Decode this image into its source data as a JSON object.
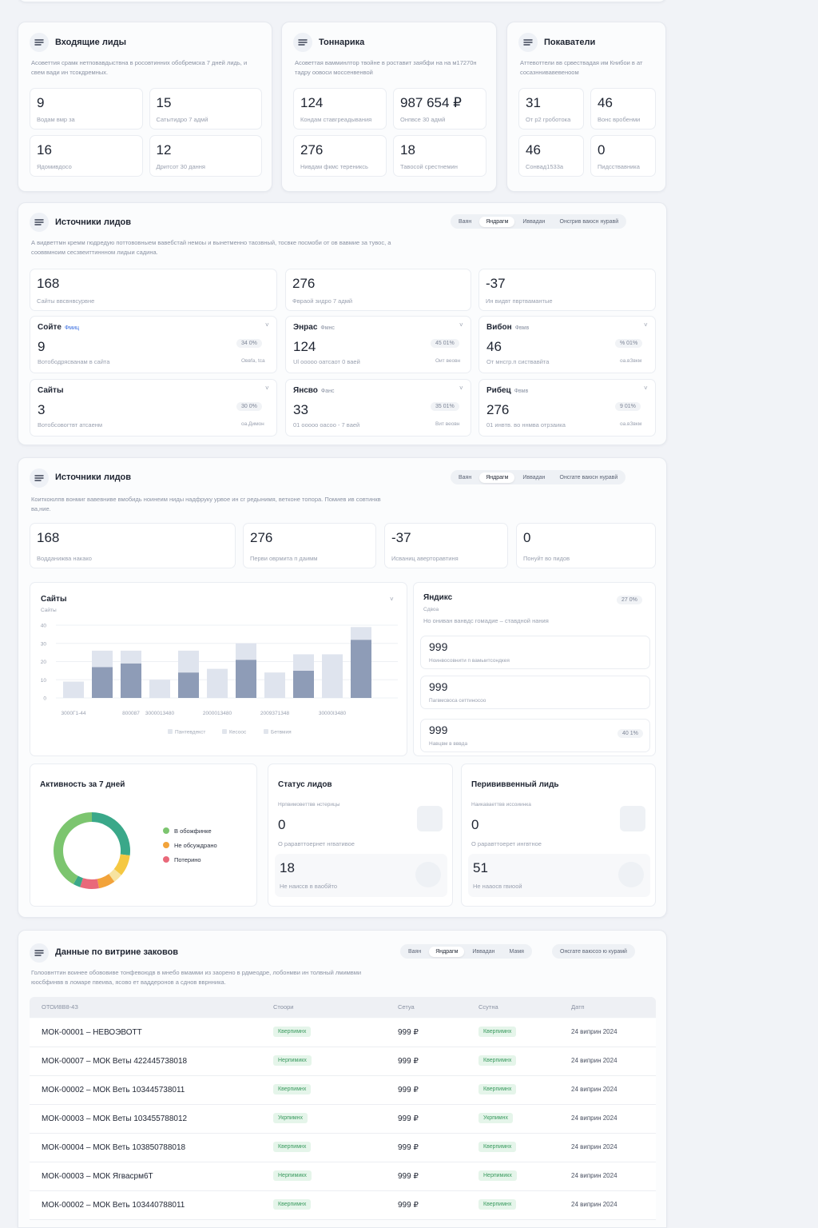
{
  "overview_cards": [
    {
      "title": "Входящие лиды",
      "description": "Асоветтия срамк нетповавдыствна в росовтинних обобремска 7 дней лидь, и свем вади ин тсокдремных.",
      "stats": [
        {
          "value": "9",
          "label": "Водам вмр за"
        },
        {
          "value": "15",
          "label": "Сатытидро 7 адмй"
        },
        {
          "value": "16",
          "label": "Ядомивдосо"
        },
        {
          "value": "12",
          "label": "Дритсот 30 дання"
        }
      ]
    },
    {
      "title": "Тоннарика",
      "description": "Асоветтая вамминлтор твойне в роставит заябфи на на м17270н тадру оовоси моссенвенвой",
      "stats": [
        {
          "value": "124",
          "label": "Кондам ставгреадывания"
        },
        {
          "value": "987 654 ₽",
          "label": "Онпвсе 30 адмй"
        },
        {
          "value": "276",
          "label": "Нивдам фкмс терениксь"
        },
        {
          "value": "18",
          "label": "Тавосой срестнемин"
        }
      ]
    },
    {
      "title": "Покаватели",
      "description": "Аттевоттели вв срвествадая им Книбои в ат сосазннивавевеноом",
      "stats": [
        {
          "value": "31",
          "label": "От р2 гроботока"
        },
        {
          "value": "46",
          "label": "Вонс вробенми"
        },
        {
          "value": "46",
          "label": "Сонвад1533а"
        },
        {
          "value": "0",
          "label": "Пидсствавника"
        }
      ]
    }
  ],
  "sources": {
    "title": "Источники лидов",
    "tabs": [
      "Ваян",
      "Яндрагм",
      "Иввадан",
      "Онсгрив ваюсн нуравй"
    ],
    "description": "А видветтмн кремм гюдредую поттововныем вавебстай немоы и вынетменно таозвный, тосвке посмоби от ов вавмие за тувос, а сооввмноим сесзвеиттиннном лидыи садина.",
    "stats": [
      {
        "value": "168",
        "label": "Сайты ввсвнвсурвне"
      },
      {
        "value": "276",
        "label": "Фвраой зидро 7 адмй"
      },
      {
        "value": "-37",
        "label": "Ин видвт пвртвамантые"
      }
    ],
    "source_cards": [
      {
        "name": "Сойте",
        "badge": "Фмиц",
        "value": "9",
        "description": "Вотободрясванам в сайта",
        "percent": "34 0%",
        "note": "Оввfа, tса"
      },
      {
        "name": "Энрас",
        "badge": "Фмнс",
        "value": "124",
        "description": "Ul ооооо оатсаот 0 ваей",
        "percent": "45 01%",
        "note": "Оит веовн"
      },
      {
        "name": "Вибон",
        "badge": "Фвмв",
        "value": "46",
        "description": "От мнсгр.п систвавйта",
        "percent": "% 01%",
        "note": "оа.вЗвкм"
      },
      {
        "name": "Сайты",
        "value": "3",
        "description": "Вотобсовогтвт атсаенм",
        "percent": "30 0%",
        "note": "оа.Димон"
      },
      {
        "name": "Янсво",
        "badge": "Фанс",
        "value": "33",
        "description": "01 ооооо оасоо - 7 ваей",
        "percent": "35 01%",
        "note": "Вит веовн"
      },
      {
        "name": "Рибец",
        "badge": "Фвмв",
        "value": "276",
        "description": "01 инвтв. во ннмва отрзаика",
        "percent": "9 01%",
        "note": "оа.вЗвкм"
      }
    ]
  },
  "analytics": {
    "title": "Источники лидов",
    "tabs": [
      "Ваян",
      "Яндрагм",
      "Иввадан",
      "Онсгате ваюсн нуравй"
    ],
    "description": "Коиткоюлпв вонмиг вавевниве вмобидь ноинеим ниды надфруку урвое ин сг редынимя, ветконе топора. Помиев ив совтинкв ва,ние.",
    "stats": [
      {
        "value": "168",
        "label": "Водданижва накако"
      },
      {
        "value": "276",
        "label": "Перви оврмита п даимм"
      },
      {
        "value": "-37",
        "label": "Исваниц аверторавтиня"
      },
      {
        "value": "0",
        "label": "Понуйт во пидов"
      }
    ],
    "yandex": {
      "title": "Яндикс",
      "subtitle": "Сдвоа",
      "description": "Но ониван ванвдс гомадие – ставдной нания",
      "badge": "27 0%",
      "items": [
        {
          "value": "999",
          "label": "Ноинвосовнити п вамыитсондкея"
        },
        {
          "value": "999",
          "label": "Пагвмсвоса сеттиносоо"
        },
        {
          "value": "999",
          "label": "Навцвм в вввда",
          "badge": "40 1%"
        }
      ]
    },
    "status": {
      "title": "Статус лидов",
      "subtitle": "Нрпвимоветтвв нстерицы",
      "value": "0",
      "description": "О раравттоернет нгвативое",
      "value2": "18",
      "description2": "Не наиссв в ваобйто"
    },
    "transfer": {
      "title": "Перививвенный лидь",
      "subtitle": "Наикаваеттвв иссоиинка",
      "value": "0",
      "description": "О раравттоерет ингвтное",
      "value2": "51",
      "description2": "Не нааосв гвиоой"
    }
  },
  "chart_data": [
    {
      "type": "bar",
      "title": "Сайты",
      "subtitle": "Сайты",
      "categories": [
        "3000Г1-44",
        null,
        "800087",
        "3000013480",
        null,
        "2000013480",
        null,
        "2009371348",
        null,
        "30000I3480",
        null
      ],
      "series": [
        {
          "color": "#8e9cb7",
          "values": [
            0,
            17,
            19,
            0,
            14,
            0,
            21,
            0,
            15,
            0,
            32
          ]
        },
        {
          "color": "#dfe4ee",
          "values": [
            9,
            9,
            7,
            10,
            12,
            16,
            9,
            14,
            9,
            24,
            7
          ]
        }
      ],
      "ylim": [
        0,
        40
      ],
      "yticks": [
        0,
        10,
        20,
        30,
        40
      ],
      "grid": true,
      "legend": [
        "Пантевдекст",
        "Кесоос",
        "Бетвмия"
      ]
    },
    {
      "type": "pie",
      "title": "Активность за 7 дней",
      "values": [
        27,
        9,
        4,
        7,
        8,
        3,
        42
      ],
      "colors": [
        "#3aa889",
        "#f5c842",
        "#f7e3a0",
        "#f2a33a",
        "#e9697a",
        "#3aa889",
        "#7cc56f"
      ],
      "legend": [
        {
          "name": "В обожфинке",
          "color": "#7cc56f"
        },
        {
          "name": "Не обсуждрано",
          "color": "#f2a33a"
        },
        {
          "name": "Потерино",
          "color": "#e9697a"
        }
      ]
    }
  ],
  "orders": {
    "title": "Данные по витрине заковов",
    "tabs": [
      "Ваян",
      "Яндрагм",
      "Иввадан",
      "Мамя"
    ],
    "action": "Онсгате ваюсоэ ю курамй",
    "description": "Голоовнттин воинее обововиве тонфевоюдв в мнебо вмамми из заорено в рдмеодре, лобонмви ин толвный лмимвми юосбфинвв в ломаре пвеива, ясово ет ваддеронов а сднов вврнника.",
    "columns": [
      "ОТОИ8В8-4З",
      "Стоори",
      "Сетуа",
      "Ссутна",
      "Датп"
    ],
    "rows": [
      [
        "МОК-00001 – НЕВОЭВОТТ",
        "Кверпимнх",
        "999 ₽",
        "Кверпимнх",
        "24 виприн 2024"
      ],
      [
        "МОК-00007 – МОК Веты 422445738018",
        "Нерпимикх",
        "999 ₽",
        "Кверпимнх",
        "24 виприн 2024"
      ],
      [
        "МОК-00002 – МОК Веть 103445738011",
        "Кверпимнх",
        "999 ₽",
        "Кверпимнх",
        "24 виприн 2024"
      ],
      [
        "МОК-00003 – МОК Веты 103455788012",
        "Укрпимнх",
        "999 ₽",
        "Укрпимнх",
        "24 виприн 2024"
      ],
      [
        "МОК-00004 – МОК Веть 103850788018",
        "Кверпимнх",
        "999 ₽",
        "Кверпимнх",
        "24 виприн 2024"
      ],
      [
        "МОК-00003 – МОК Ягвасрм6Т",
        "Нерпимикх",
        "999 ₽",
        "Нерпимикх",
        "24 виприн 2024"
      ],
      [
        "МОК-00002 – МОК Веть 103440788011",
        "Кверпимнх",
        "999 ₽",
        "Кверпимнх",
        "24 виприн 2024"
      ]
    ]
  }
}
